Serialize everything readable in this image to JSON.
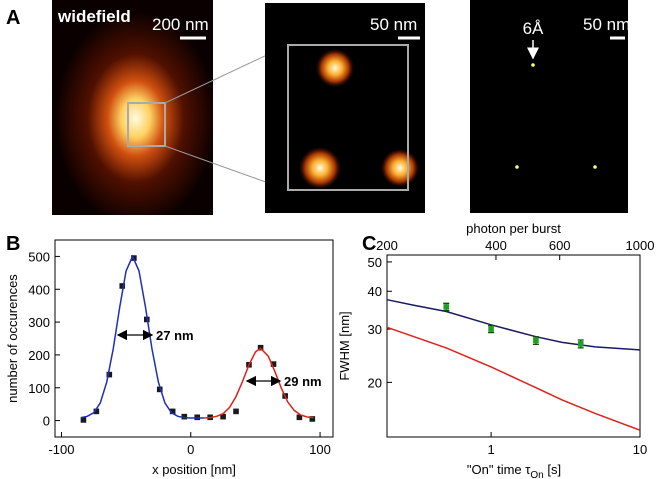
{
  "panel_labels": [
    "A",
    "B",
    "C"
  ],
  "panel_a": {
    "widefield_label": "widefield",
    "scale_1": "200 nm",
    "scale_2": "50 nm",
    "scale_3": "50 nm",
    "distance_label": "6Å"
  },
  "chart_data": [
    {
      "type": "scatter",
      "xlabel": "x position [nm]",
      "ylabel": "number of occurences",
      "xlim": [
        -105,
        110
      ],
      "ylim": [
        -50,
        550
      ],
      "xticks": [
        -100,
        0,
        100
      ],
      "yticks": [
        0,
        100,
        200,
        300,
        400,
        500
      ],
      "annotations": [
        "27 nm",
        "29 nm"
      ],
      "series": [
        {
          "color": "#1a1a1a",
          "marker": "square",
          "x": [
            -83,
            -73,
            -63,
            -53,
            -44,
            -34,
            -24,
            -14,
            -5,
            5,
            15,
            25,
            35,
            45,
            54,
            64,
            73,
            84,
            94
          ],
          "values": [
            2,
            28,
            140,
            410,
            495,
            308,
            95,
            28,
            12,
            10,
            10,
            12,
            28,
            170,
            222,
            172,
            75,
            10,
            5
          ]
        },
        {
          "color": "#1f2fb8",
          "style": "line",
          "x": [
            -85,
            -80,
            -75,
            -70,
            -65,
            -60,
            -55,
            -50,
            -45,
            -40,
            -35,
            -30,
            -25,
            -20,
            -15,
            -10,
            -5,
            0,
            5,
            10
          ],
          "values": [
            9,
            13,
            24,
            54,
            117,
            218,
            345,
            456,
            500,
            456,
            345,
            218,
            117,
            54,
            24,
            13,
            9,
            8,
            8,
            8
          ]
        },
        {
          "color": "#e0201a",
          "style": "line",
          "x": [
            10,
            15,
            20,
            25,
            30,
            35,
            40,
            45,
            50,
            54,
            60,
            65,
            70,
            75,
            80,
            85,
            90,
            95
          ],
          "values": [
            8,
            9,
            13,
            21,
            40,
            73,
            119,
            170,
            209,
            220,
            196,
            150,
            99,
            57,
            31,
            17,
            11,
            9
          ]
        }
      ]
    },
    {
      "type": "scatter",
      "xscale": "log",
      "yscale": "log",
      "xlabel_parts": [
        "\"On\" time τ",
        "On",
        " [s]"
      ],
      "ylabel": "FWHM [nm]",
      "x2label": "photon per burst",
      "xlim": [
        0.2,
        10
      ],
      "ylim": [
        13.2,
        52.7
      ],
      "x2lim": [
        200,
        1000
      ],
      "xticks": [
        1,
        10
      ],
      "yticks": [
        20,
        30,
        40,
        50
      ],
      "x2ticks": [
        200,
        400,
        600,
        1000
      ],
      "series": [
        {
          "color": "#1a1a60",
          "style": "line",
          "x": [
            0.2,
            0.3,
            0.5,
            1,
            2,
            3,
            5,
            10
          ],
          "values": [
            37.5,
            36,
            34.3,
            31,
            28.3,
            27.1,
            26.2,
            25.6
          ]
        },
        {
          "color": "#e0201a",
          "style": "line",
          "x": [
            0.2,
            0.5,
            1,
            2,
            3,
            5,
            10
          ],
          "values": [
            30.4,
            26,
            22.5,
            19.2,
            17.5,
            15.8,
            13.9
          ]
        },
        {
          "color": "#22a022",
          "marker": "square",
          "x": [
            0.5,
            1,
            2,
            4
          ],
          "values": [
            35.5,
            30,
            27.5,
            26.8
          ],
          "errors": [
            1,
            0.8,
            0.8,
            0.8
          ]
        }
      ]
    }
  ]
}
